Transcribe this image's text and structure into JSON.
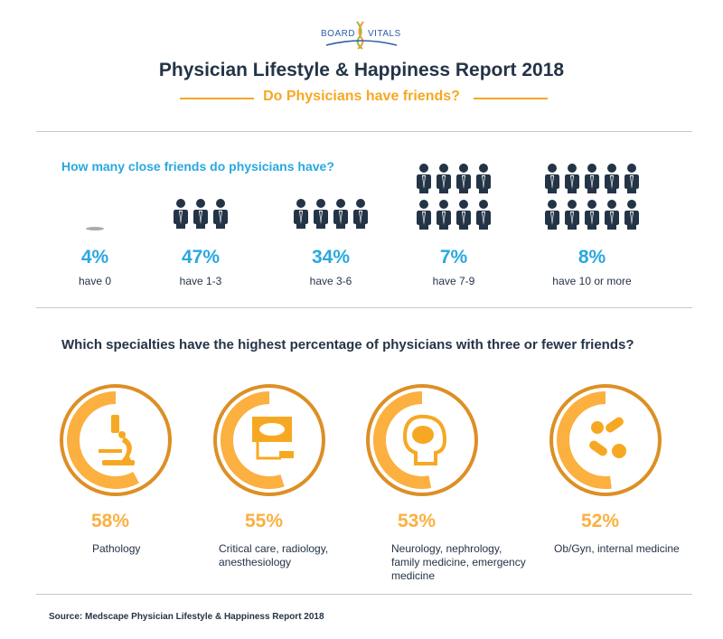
{
  "logo": "BOARD VITALS",
  "title": "Physician Lifestyle & Happiness Report 2018",
  "subtitle": "Do Physicians have friends?",
  "section1": {
    "question": "How many close friends do physicians have?"
  },
  "section2": {
    "question": "Which specialties have the highest percentage of physicians with three or fewer friends?"
  },
  "source": "Source: Medscape Physician Lifestyle & Happiness Report 2018",
  "colors": {
    "navy": "#243447",
    "blue": "#29a8e0",
    "orange": "#f7a823",
    "ring": "#dd8f25",
    "arc": "#fbb040"
  },
  "chart_data": [
    {
      "type": "pictogram",
      "title": "How many close friends do physicians have?",
      "categories": [
        "have 0",
        "have 1-3",
        "have 3-6",
        "have 7-9",
        "have 10 or more"
      ],
      "labels": [
        "4%",
        "47%",
        "34%",
        "7%",
        "8%"
      ],
      "values": [
        4,
        47,
        34,
        7,
        8
      ],
      "icon_counts": [
        0,
        3,
        4,
        8,
        10
      ]
    },
    {
      "type": "radial-bar",
      "title": "Which specialties have the highest percentage of physicians with three or fewer friends?",
      "categories": [
        "Pathology",
        "Critical care, radiology, anesthesiology",
        "Neurology, nephrology, family medicine, emergency medicine",
        "Ob/Gyn, internal medicine"
      ],
      "labels": [
        "58%",
        "55%",
        "53%",
        "52%"
      ],
      "values": [
        58,
        55,
        53,
        52
      ],
      "icons": [
        "microscope-icon",
        "ultrasound-icon",
        "brain-head-icon",
        "pills-icon"
      ]
    }
  ]
}
